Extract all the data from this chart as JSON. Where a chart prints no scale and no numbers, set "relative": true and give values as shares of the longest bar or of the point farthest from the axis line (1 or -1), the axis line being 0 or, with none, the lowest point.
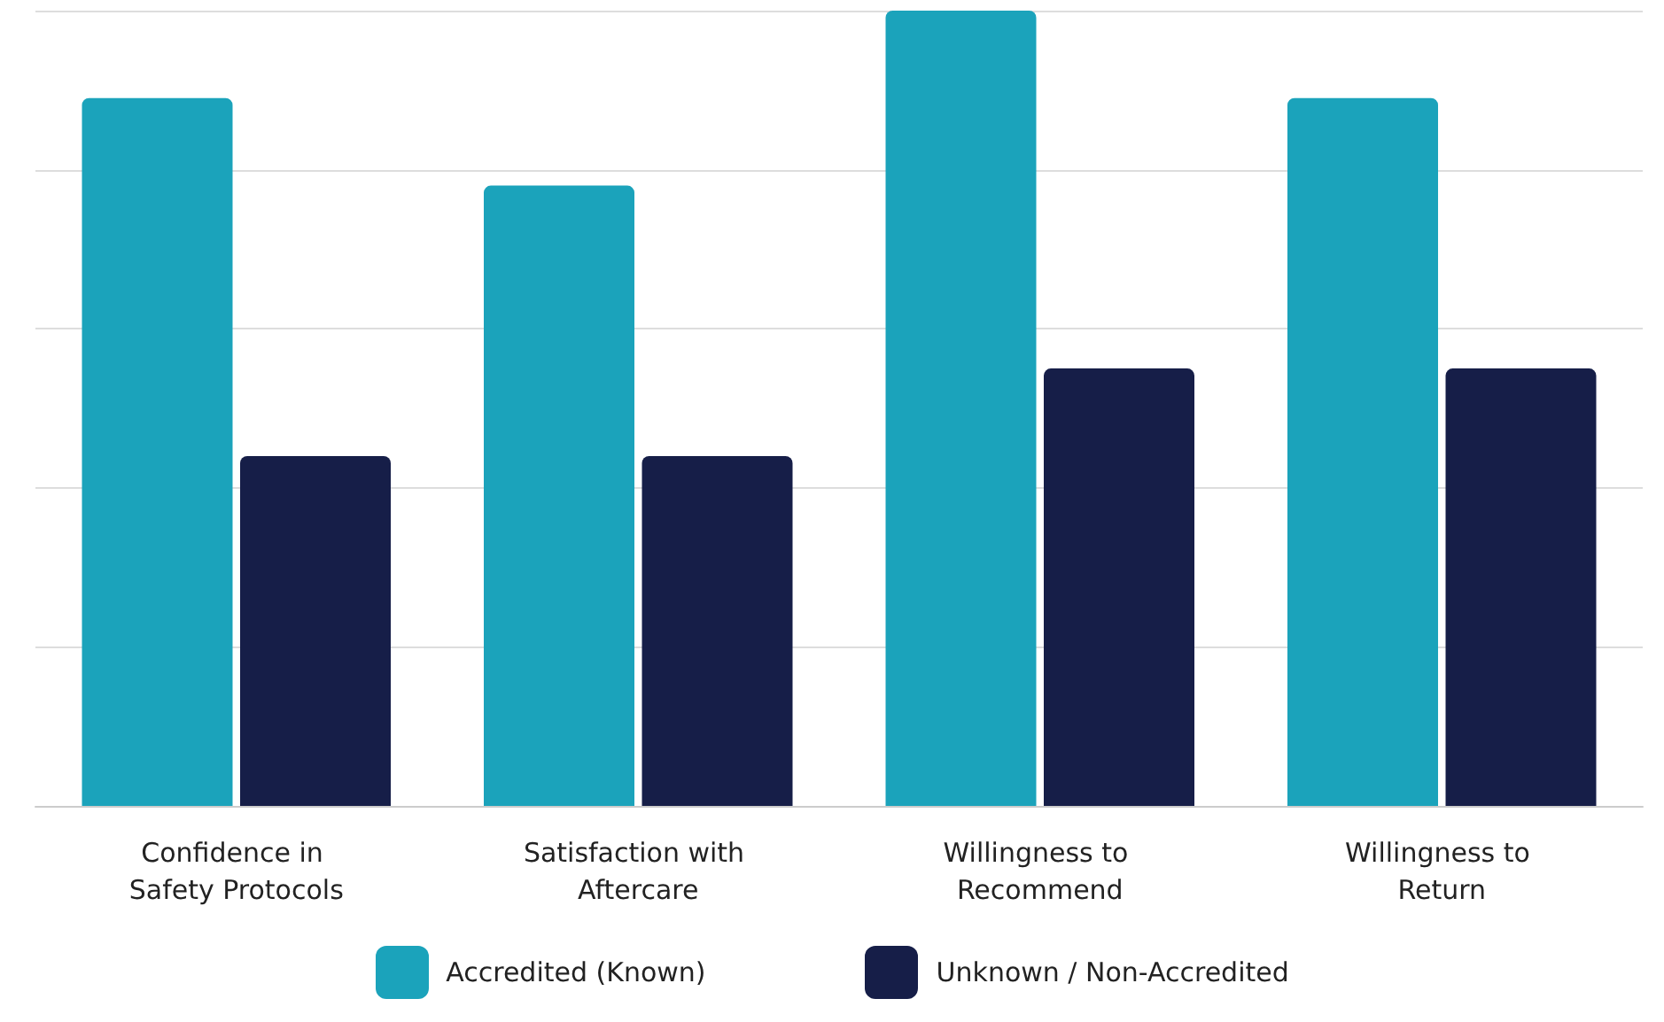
{
  "chart_data": {
    "type": "bar",
    "relative": true,
    "grid": "y",
    "legend": "bottom",
    "categories": [
      "Confidence in Safety Protocols",
      "Satisfaction with Aftercare",
      "Willingness to Recommend",
      "Willingness to Return"
    ],
    "series": [
      {
        "name": "Accredited (Known)",
        "color": "#1ba3bb",
        "values": [
          0.89,
          0.78,
          1,
          0.89
        ]
      },
      {
        "name": "Unknown / Non-Accredited",
        "color": "#161e48",
        "values": [
          0.44,
          0.44,
          0.55,
          0.55
        ]
      }
    ]
  }
}
